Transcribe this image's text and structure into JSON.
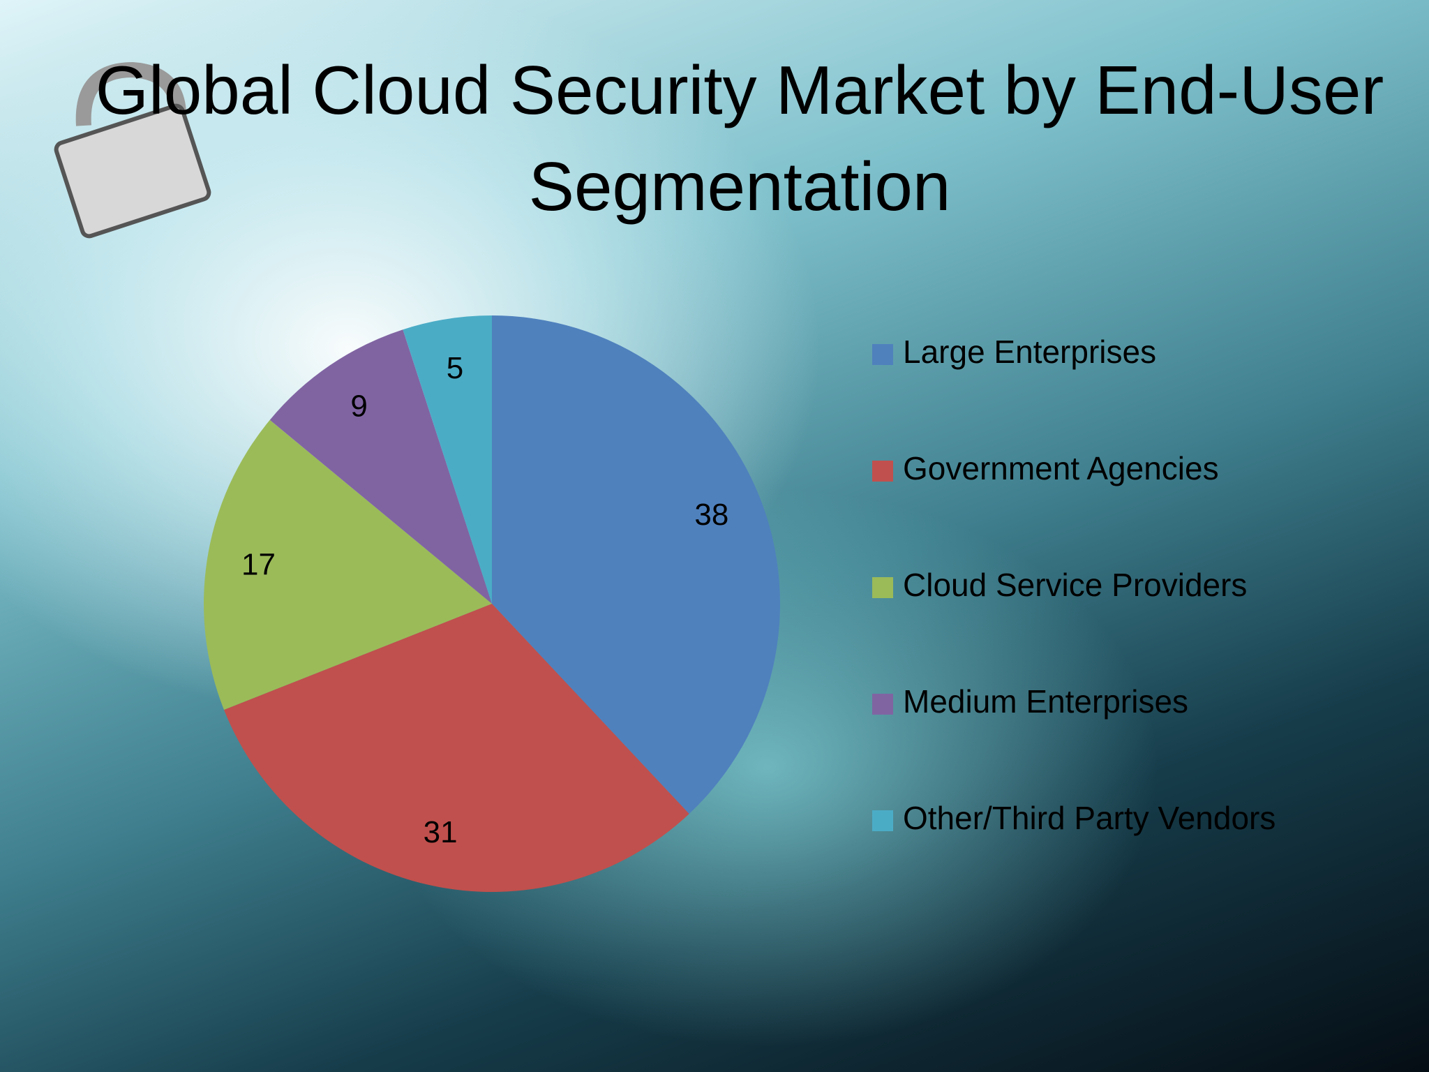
{
  "chart_data": {
    "type": "pie",
    "title": "Global Cloud Security Market by End-User Segmentation",
    "categories": [
      "Large Enterprises",
      "Government Agencies",
      "Cloud Service Providers",
      "Medium Enterprises",
      "Other/Third Party Vendors"
    ],
    "values": [
      38,
      31,
      17,
      9,
      5
    ],
    "colors": [
      "#4f81bd",
      "#c0504d",
      "#9bbb59",
      "#8064a2",
      "#4bacc6"
    ],
    "legend": "right"
  }
}
